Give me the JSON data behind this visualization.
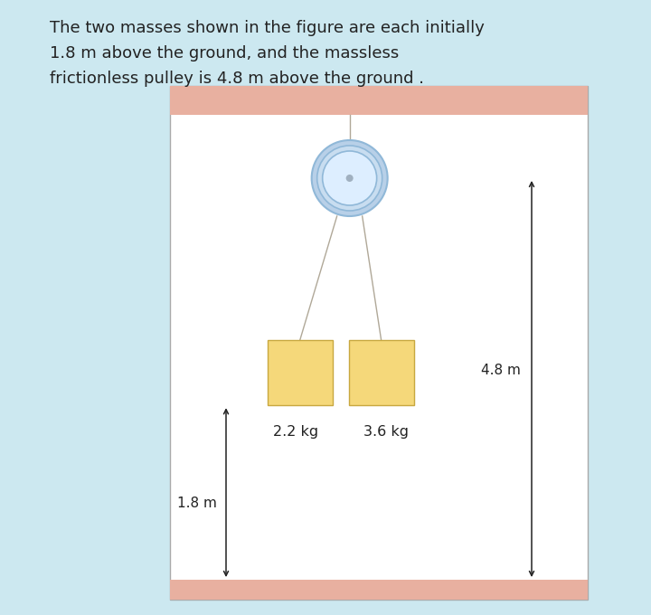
{
  "bg_color": "#cce8f0",
  "diagram_bg": "#ffffff",
  "ceiling_color": "#e8b0a0",
  "floor_color": "#e8b0a0",
  "pulley_outer_color": "#b8d0e8",
  "pulley_inner_color": "#ddeeff",
  "rope_color": "#b0a898",
  "mass_color": "#f5d87a",
  "mass_border": "#c8a840",
  "text_color": "#222222",
  "title_line1": "The two masses shown in the figure are each initially",
  "title_line2": "1.8 m above the ground, and the massless",
  "title_line3": "frictionless pulley is 4.8 m above the ground .",
  "label_18m": "1.8 m",
  "label_48m": "4.8 m",
  "label_m1": "2.2 kg",
  "label_m2": "3.6 kg"
}
